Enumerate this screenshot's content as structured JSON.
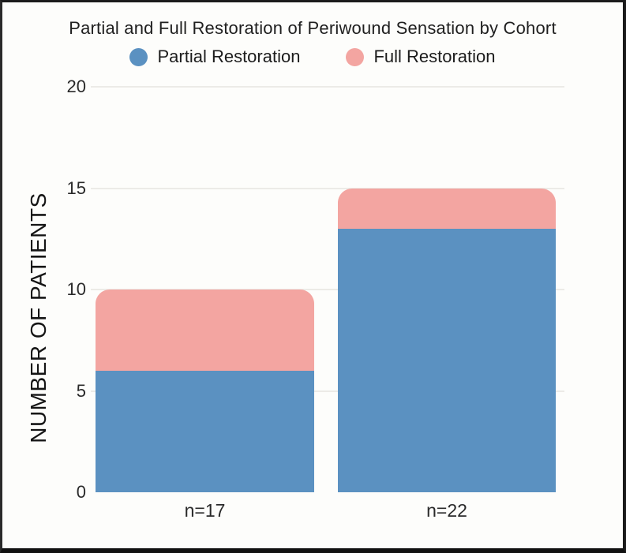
{
  "chart_data": {
    "type": "bar",
    "stacked": true,
    "title": "Partial and Full Restoration of Periwound Sensation by Cohort",
    "categories": [
      "n=17",
      "n=22"
    ],
    "series": [
      {
        "name": "Partial Restoration",
        "values": [
          6,
          13
        ],
        "color": "#5b91c1"
      },
      {
        "name": "Full Restoration",
        "values": [
          4,
          2
        ],
        "color": "#f3a5a1"
      }
    ],
    "stack_totals": [
      10,
      15
    ],
    "xlabel": "",
    "ylabel": "NUMBER OF PATIENTS",
    "ylim": [
      0,
      20
    ],
    "yticks": [
      0,
      5,
      10,
      15,
      20
    ],
    "grid": true,
    "legend_position": "top",
    "grid_color": "#ecebe7",
    "background_color": "#fdfdfb",
    "frame_color": "#1b1b1b"
  }
}
